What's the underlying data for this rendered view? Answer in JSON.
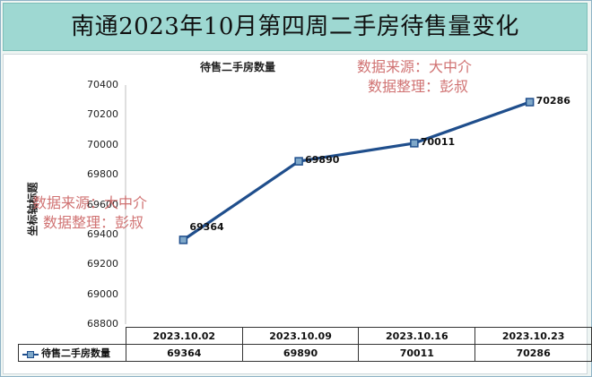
{
  "title": "南通2023年10月第四周二手房待售量变化",
  "watermarks": [
    {
      "line1": "数据来源：大中介",
      "line2": "数据整理：彭叔"
    },
    {
      "line1": "数据来源：大中介",
      "line2": "数据整理：彭叔"
    }
  ],
  "chart_data": {
    "type": "line",
    "title": "待售二手房数量",
    "xlabel": "",
    "ylabel": "坐标轴标题",
    "categories": [
      "2023.10.02",
      "2023.10.09",
      "2023.10.16",
      "2023.10.23"
    ],
    "series": [
      {
        "name": "待售二手房数量",
        "values": [
          69364,
          69890,
          70011,
          70286
        ],
        "color": "#1f4e8c"
      }
    ],
    "ylim": [
      68800,
      70400
    ],
    "yticks": [
      68800,
      69000,
      69200,
      69400,
      69600,
      69800,
      70000,
      70200,
      70400
    ],
    "data_labels": [
      "69364",
      "69890",
      "70011",
      "70286"
    ],
    "data_table": true,
    "grid": false
  }
}
